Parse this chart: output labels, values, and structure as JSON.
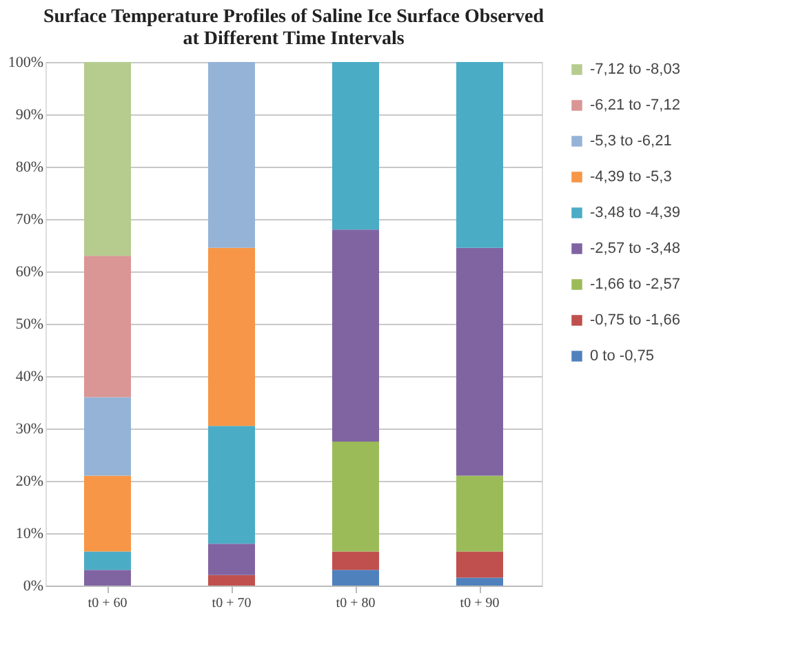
{
  "chart_data": {
    "type": "bar",
    "stacked": true,
    "title": [
      "Surface Temperature Profiles of Saline Ice Surface Observed",
      "at Different Time Intervals"
    ],
    "categories": [
      "t0 + 60",
      "t0 + 70",
      "t0 + 80",
      "t0 + 90"
    ],
    "series": [
      {
        "name": "0 to -0,75",
        "color": "#4f81bd",
        "values": [
          null,
          null,
          3,
          1.5
        ]
      },
      {
        "name": "-0,75 to -1,66",
        "color": "#c0504d",
        "values": [
          null,
          2,
          3.5,
          5
        ]
      },
      {
        "name": "-1,66 to -2,57",
        "color": "#9bbb59",
        "values": [
          null,
          null,
          21,
          14.5
        ]
      },
      {
        "name": "-2,57 to -3,48",
        "color": "#8064a2",
        "values": [
          3,
          6,
          40.5,
          43.5
        ]
      },
      {
        "name": "-3,48 to -4,39",
        "color": "#4bacc6",
        "values": [
          3.5,
          22.5,
          32,
          35.5
        ]
      },
      {
        "name": "-4,39 to -5,3",
        "color": "#f79646",
        "values": [
          14.5,
          34,
          null,
          null
        ]
      },
      {
        "name": "-5,3 to -6,21",
        "color": "#95b3d7",
        "values": [
          15,
          35.5,
          null,
          null
        ]
      },
      {
        "name": "-6,21 to -7,12",
        "color": "#d99694",
        "values": [
          27,
          null,
          null,
          null
        ]
      },
      {
        "name": "-7,12 to -8,03",
        "color": "#b5cc8e",
        "values": [
          37,
          null,
          null,
          null
        ]
      }
    ],
    "ylim": [
      0,
      100
    ],
    "yticks": [
      {
        "value": 0,
        "label": "0%"
      },
      {
        "value": 10,
        "label": "10%"
      },
      {
        "value": 20,
        "label": "20%"
      },
      {
        "value": 30,
        "label": "30%"
      },
      {
        "value": 40,
        "label": "40%"
      },
      {
        "value": 50,
        "label": "50%"
      },
      {
        "value": 60,
        "label": "60%"
      },
      {
        "value": 70,
        "label": "70%"
      },
      {
        "value": 80,
        "label": "80%"
      },
      {
        "value": 90,
        "label": "90%"
      },
      {
        "value": 100,
        "label": "100%"
      }
    ],
    "grid": "y",
    "legend": "right"
  }
}
